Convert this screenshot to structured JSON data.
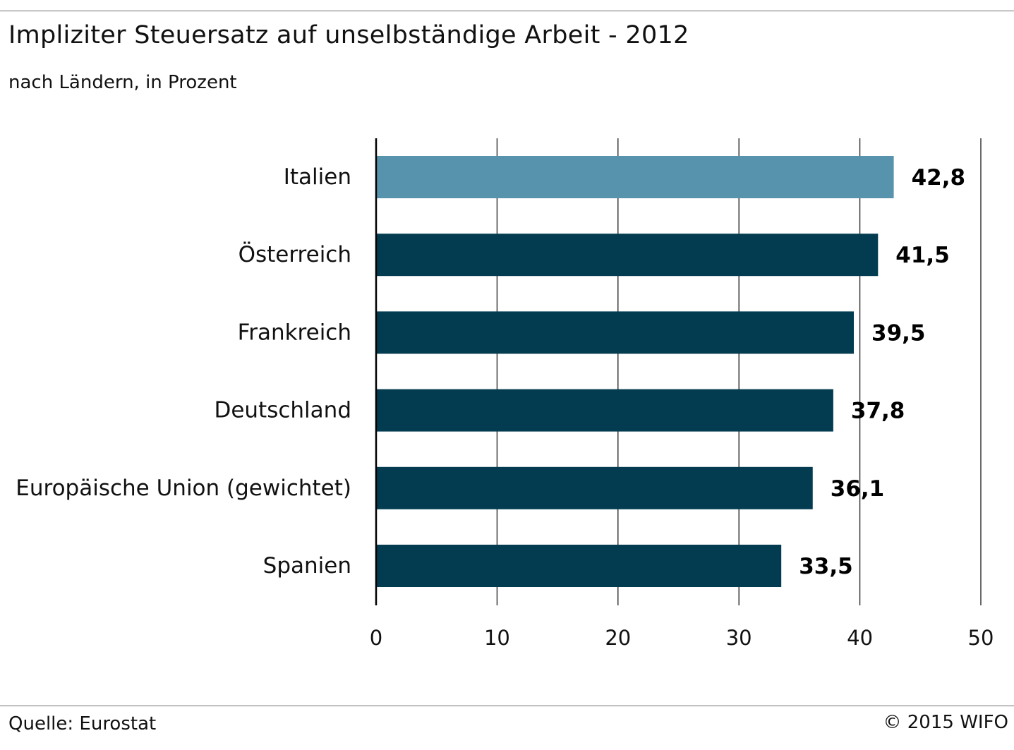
{
  "header": {
    "title": "Impliziter Steuersatz auf unselbständige Arbeit - 2012",
    "subtitle": "nach Ländern, in Prozent"
  },
  "footer": {
    "source": "Quelle: Eurostat",
    "copyright": "© 2015 WIFO"
  },
  "chart_data": {
    "type": "bar",
    "orientation": "horizontal",
    "title": "Impliziter Steuersatz auf unselbständige Arbeit - 2012",
    "subtitle": "nach Ländern, in Prozent",
    "xlabel": "",
    "ylabel": "",
    "xlim": [
      0,
      50
    ],
    "ticks": [
      0,
      10,
      20,
      30,
      40,
      50
    ],
    "tick_labels": [
      "0",
      "10",
      "20",
      "30",
      "40",
      "50"
    ],
    "grid": true,
    "legend": "none",
    "categories": [
      "Italien",
      "Österreich",
      "Frankreich",
      "Deutschland",
      "Europäische Union (gewichtet)",
      "Spanien"
    ],
    "values": [
      42.8,
      41.5,
      39.5,
      37.8,
      36.1,
      33.5
    ],
    "value_labels": [
      "42,8",
      "41,5",
      "39,5",
      "37,8",
      "36,1",
      "33,5"
    ],
    "highlight_index": 0,
    "colors": {
      "highlight": "#5793ad",
      "bar": "#033c50",
      "grid": "#1a1a1a",
      "axis": "#000000"
    }
  }
}
